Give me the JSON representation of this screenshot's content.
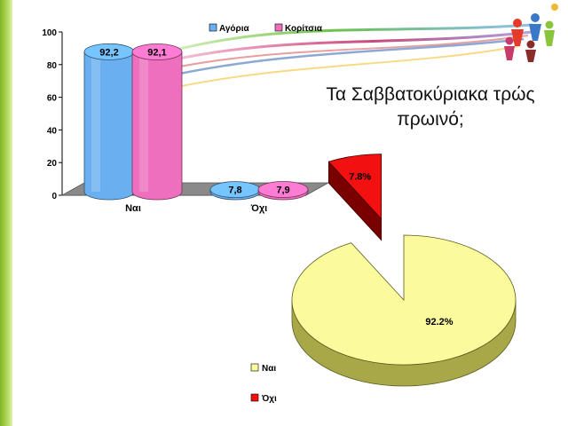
{
  "title_line1": "Τα Σαββατοκύριακα τρώς",
  "title_line2": "πρωινό;",
  "colors": {
    "boys": "#6ab0f0",
    "girls": "#ee6fbd",
    "yes": "#fbfa9c",
    "no": "#f21010"
  },
  "chart_data": [
    {
      "type": "bar",
      "categories": [
        "Ναι",
        "Όχι"
      ],
      "series": [
        {
          "name": "Αγόρια",
          "values": [
            92.2,
            7.8
          ],
          "labels": [
            "92,2",
            "7,8"
          ]
        },
        {
          "name": "Κορίτσια",
          "values": [
            92.1,
            7.9
          ],
          "labels": [
            "92,1",
            "7,9"
          ]
        }
      ],
      "ylim": [
        0,
        100
      ],
      "yticks": [
        0,
        20,
        40,
        60,
        80,
        100
      ],
      "legend": "top",
      "grid": false
    },
    {
      "type": "pie",
      "categories": [
        "Ναι",
        "Όχι"
      ],
      "values": [
        92.2,
        7.8
      ],
      "labels": [
        "92.2%",
        "7.8%"
      ],
      "exploded": "Όχι",
      "legend": "bottom-left"
    }
  ]
}
